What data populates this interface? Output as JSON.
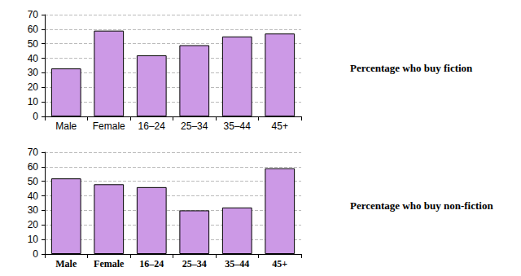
{
  "chart_data": [
    {
      "type": "bar",
      "title": "Percentage who buy fiction",
      "categories": [
        "Male",
        "Female",
        "16–24",
        "25–34",
        "35–44",
        "45+"
      ],
      "values": [
        33,
        59,
        42,
        49,
        55,
        57
      ],
      "color": "#cc99e6",
      "ylim": [
        0,
        70
      ],
      "yticks": [
        0,
        10,
        20,
        30,
        40,
        50,
        60,
        70
      ],
      "grid": true
    },
    {
      "type": "bar",
      "title": "Percentage who buy non-fiction",
      "categories": [
        "Male",
        "Female",
        "16–24",
        "25–34",
        "35–44",
        "45+"
      ],
      "values": [
        52,
        48,
        46,
        30,
        32,
        59
      ],
      "color": "#cc99e6",
      "ylim": [
        0,
        70
      ],
      "yticks": [
        0,
        10,
        20,
        30,
        40,
        50,
        60,
        70
      ],
      "grid": true
    }
  ]
}
